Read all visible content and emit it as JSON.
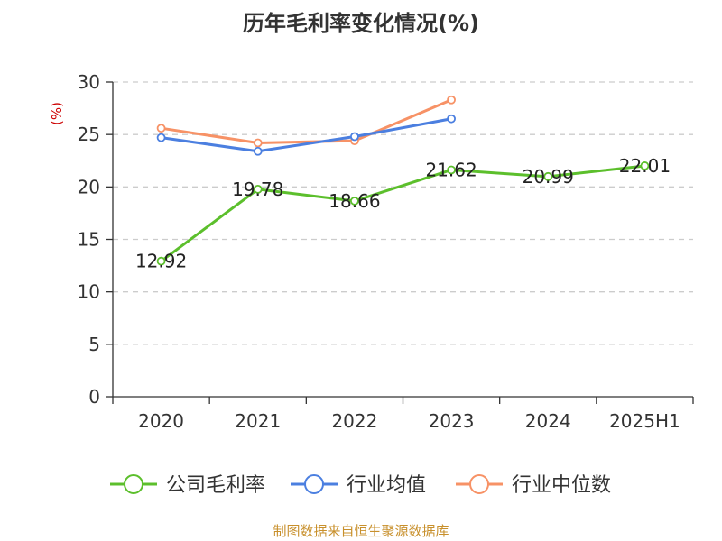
{
  "chart_data": {
    "type": "line",
    "title": "历年毛利率变化情况(%)",
    "ylabel": "(%)",
    "xlabel": "",
    "categories": [
      "2020",
      "2021",
      "2022",
      "2023",
      "2024",
      "2025H1"
    ],
    "ylim": [
      0,
      30
    ],
    "yticks": [
      0,
      5,
      10,
      15,
      20,
      25,
      30
    ],
    "grid": true,
    "legend_position": "bottom",
    "series": [
      {
        "name": "公司毛利率",
        "color": "#5cbf2c",
        "values": [
          12.92,
          19.78,
          18.66,
          21.62,
          20.99,
          22.01
        ],
        "labels": [
          "12.92",
          "19.78",
          "18.66",
          "21.62",
          "20.99",
          "22.01"
        ]
      },
      {
        "name": "行业均值",
        "color": "#4b7fe0",
        "values": [
          24.7,
          23.4,
          24.8,
          26.5,
          null,
          null
        ]
      },
      {
        "name": "行业中位数",
        "color": "#f79266",
        "values": [
          25.6,
          24.2,
          24.4,
          28.3,
          null,
          null
        ]
      }
    ]
  },
  "footer": {
    "source": "制图数据来自恒生聚源数据库"
  }
}
